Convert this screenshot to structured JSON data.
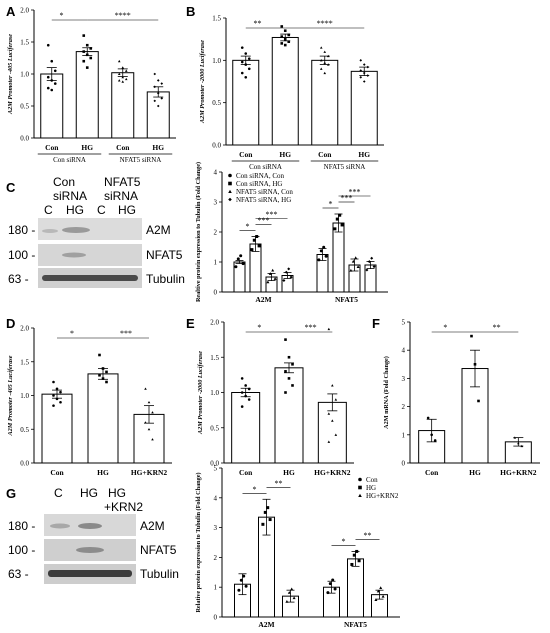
{
  "panels": {
    "A": "A",
    "B": "B",
    "C": "C",
    "D": "D",
    "E": "E",
    "F": "F",
    "G": "G"
  },
  "blot_c": {
    "lanes_top": [
      "Con",
      "NFAT5"
    ],
    "lanes_mid": [
      "siRNA",
      "siRNA"
    ],
    "lanes_bot": [
      "C",
      "HG",
      "C",
      "HG"
    ],
    "bands": [
      "A2M",
      "NFAT5",
      "Tubulin"
    ],
    "mw": [
      "180 -",
      "100 -",
      "63 -"
    ]
  },
  "blot_g": {
    "lanes": [
      "C",
      "HG",
      "HG"
    ],
    "lane_sub": "+KRN2",
    "bands": [
      "A2M",
      "NFAT5",
      "Tubulin"
    ],
    "mw": [
      "180 -",
      "100 -",
      "63 -"
    ]
  },
  "chart_data": [
    {
      "id": "A",
      "type": "bar",
      "categories": [
        "Con",
        "HG",
        "Con",
        "HG"
      ],
      "groups": [
        "Con siRNA",
        "NFAT5 siRNA"
      ],
      "values": [
        1.0,
        1.35,
        1.02,
        0.72
      ],
      "errors": [
        0.1,
        0.06,
        0.06,
        0.08
      ],
      "ylabel": "A2M Promoter -405 Luciferase",
      "ylim": [
        0,
        2.0
      ],
      "yticks": [
        "0.0",
        "0.5",
        "1.0",
        "1.5",
        "2.0"
      ],
      "sig": [
        {
          "from": 0,
          "to": 1,
          "label": "*"
        },
        {
          "from": 1,
          "to": 3,
          "label": "****"
        }
      ],
      "points": [
        [
          1.45,
          1.2,
          1.05,
          0.95,
          0.9,
          0.85,
          0.78,
          0.75
        ],
        [
          1.6,
          1.45,
          1.4,
          1.35,
          1.3,
          1.25,
          1.2,
          1.1
        ],
        [
          1.2,
          1.1,
          1.05,
          1.0,
          0.95,
          0.92,
          0.9,
          0.88
        ],
        [
          1.0,
          0.9,
          0.85,
          0.8,
          0.7,
          0.62,
          0.58,
          0.5
        ]
      ]
    },
    {
      "id": "B",
      "type": "bar",
      "categories": [
        "Con",
        "HG",
        "Con",
        "HG"
      ],
      "groups": [
        "Con siRNA",
        "NFAT5 siRNA"
      ],
      "values": [
        1.0,
        1.27,
        1.0,
        0.87
      ],
      "errors": [
        0.05,
        0.04,
        0.05,
        0.05
      ],
      "ylabel": "A2M Promoter -2000 Luciferase",
      "ylim": [
        0,
        1.5
      ],
      "yticks": [
        "0.0",
        "0.5",
        "1.0",
        "1.5"
      ],
      "sig": [
        {
          "from": 0,
          "to": 1,
          "label": "**"
        },
        {
          "from": 1,
          "to": 3,
          "label": "****"
        }
      ],
      "points": [
        [
          1.15,
          1.08,
          1.02,
          0.98,
          0.95,
          0.9,
          0.85,
          0.8
        ],
        [
          1.4,
          1.35,
          1.3,
          1.28,
          1.25,
          1.22,
          1.2,
          1.18
        ],
        [
          1.15,
          1.1,
          1.05,
          1.0,
          0.97,
          0.95,
          0.9,
          0.85
        ],
        [
          1.0,
          0.95,
          0.92,
          0.88,
          0.85,
          0.82,
          0.8,
          0.75
        ]
      ]
    },
    {
      "id": "C",
      "type": "bar",
      "groups": [
        "A2M",
        "NFAT5"
      ],
      "series": [
        {
          "name": "Con siRNA, Con",
          "values": [
            1.0,
            1.25
          ],
          "errors": [
            0.05,
            0.2
          ]
        },
        {
          "name": "Con siRNA, HG",
          "values": [
            1.6,
            2.3
          ],
          "errors": [
            0.25,
            0.3
          ]
        },
        {
          "name": "NFAT5 siRNA, Con",
          "values": [
            0.5,
            0.9
          ],
          "errors": [
            0.12,
            0.2
          ]
        },
        {
          "name": "NFAT5 siRNA, HG",
          "values": [
            0.55,
            0.9
          ],
          "errors": [
            0.1,
            0.12
          ]
        }
      ],
      "ylabel": "Realtive protein expression to Tubulin (Fold Change)",
      "ylim": [
        0,
        4
      ],
      "yticks": [
        "0",
        "1",
        "2",
        "3",
        "4"
      ],
      "sig": [
        {
          "group": 0,
          "from": 0,
          "to": 1,
          "label": "*"
        },
        {
          "group": 0,
          "from": 1,
          "to": 2,
          "label": "***"
        },
        {
          "group": 0,
          "from": 1,
          "to": 3,
          "label": "***"
        },
        {
          "group": 1,
          "from": 0,
          "to": 1,
          "label": "*"
        },
        {
          "group": 1,
          "from": 1,
          "to": 2,
          "label": "***"
        },
        {
          "group": 1,
          "from": 1,
          "to": 3,
          "label": "***"
        }
      ]
    },
    {
      "id": "D",
      "type": "bar",
      "categories": [
        "Con",
        "HG",
        "HG+KRN2"
      ],
      "values": [
        1.02,
        1.32,
        0.72
      ],
      "errors": [
        0.06,
        0.08,
        0.13
      ],
      "ylabel": "A2M Promoter -405 Luciferase",
      "ylim": [
        0,
        2.0
      ],
      "yticks": [
        "0.0",
        "0.5",
        "1.0",
        "1.5",
        "2.0"
      ],
      "sig": [
        {
          "from": 0,
          "to": 1,
          "label": "*"
        },
        {
          "from": 1,
          "to": 2,
          "label": "***"
        }
      ],
      "points": [
        [
          1.2,
          1.1,
          1.05,
          1.0,
          0.95,
          0.9,
          0.85
        ],
        [
          1.6,
          1.4,
          1.35,
          1.3,
          1.25,
          1.2
        ],
        [
          1.1,
          0.9,
          0.75,
          0.6,
          0.5,
          0.35
        ]
      ]
    },
    {
      "id": "E",
      "type": "bar",
      "categories": [
        "Con",
        "HG",
        "HG+KRN2"
      ],
      "values": [
        1.0,
        1.35,
        0.86
      ],
      "errors": [
        0.06,
        0.07,
        0.12
      ],
      "ylabel": "A2M Promoter -2000 Luciferase",
      "ylim": [
        0,
        2.0
      ],
      "yticks": [
        "0.0",
        "0.5",
        "1.0",
        "1.5",
        "2.0"
      ],
      "sig": [
        {
          "from": 0,
          "to": 1,
          "label": "*"
        },
        {
          "from": 1,
          "to": 2,
          "label": "***"
        }
      ],
      "points": [
        [
          1.2,
          1.1,
          1.05,
          1.0,
          0.95,
          0.9,
          0.8
        ],
        [
          1.75,
          1.5,
          1.4,
          1.3,
          1.2,
          1.1,
          1.0
        ],
        [
          1.9,
          1.1,
          0.9,
          0.7,
          0.6,
          0.4,
          0.3
        ]
      ]
    },
    {
      "id": "F",
      "type": "bar",
      "categories": [
        "Con",
        "HG",
        "HG+KRN2"
      ],
      "values": [
        1.15,
        3.35,
        0.75
      ],
      "errors": [
        0.4,
        0.65,
        0.15
      ],
      "ylabel": "A2M mRNA (Fold Change)",
      "ylim": [
        0,
        5
      ],
      "yticks": [
        "0",
        "1",
        "2",
        "3",
        "4",
        "5"
      ],
      "sig": [
        {
          "from": 0,
          "to": 1,
          "label": "*"
        },
        {
          "from": 1,
          "to": 2,
          "label": "**"
        }
      ],
      "points": [
        [
          1.6,
          1.0,
          0.8
        ],
        [
          4.5,
          3.5,
          2.2
        ],
        [
          0.9,
          0.7,
          0.6
        ]
      ]
    },
    {
      "id": "G",
      "type": "bar",
      "groups": [
        "A2M",
        "NFAT5"
      ],
      "series": [
        {
          "name": "Con",
          "values": [
            1.1,
            1.0
          ],
          "errors": [
            0.35,
            0.2
          ]
        },
        {
          "name": "HG",
          "values": [
            3.35,
            1.95
          ],
          "errors": [
            0.6,
            0.25
          ]
        },
        {
          "name": "HG+KRN2",
          "values": [
            0.7,
            0.75
          ],
          "errors": [
            0.2,
            0.15
          ]
        }
      ],
      "ylabel": "Relative protein expression to Tubulin (Fold Change)",
      "ylim": [
        0,
        5
      ],
      "yticks": [
        "0",
        "1",
        "2",
        "3",
        "4",
        "5"
      ],
      "sig": [
        {
          "group": 0,
          "from": 0,
          "to": 1,
          "label": "*"
        },
        {
          "group": 0,
          "from": 1,
          "to": 2,
          "label": "**"
        },
        {
          "group": 1,
          "from": 0,
          "to": 1,
          "label": "*"
        },
        {
          "group": 1,
          "from": 1,
          "to": 2,
          "label": "**"
        }
      ]
    }
  ]
}
